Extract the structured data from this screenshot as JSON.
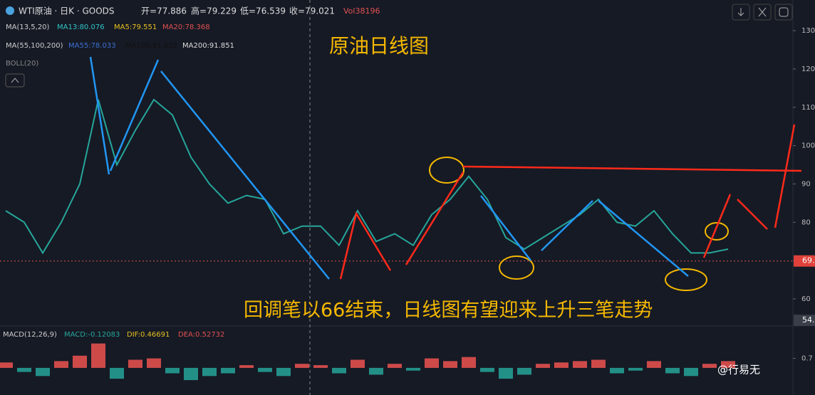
{
  "toolbar": {
    "symbol": "WTI原油 · 日K · GOODS",
    "open": "开=77.886",
    "high": "高=79.229",
    "low": "低=76.539",
    "close": "收=79.021",
    "volume": "Vol38196"
  },
  "indicators": {
    "ma_a_name": "MA(13,5,20)",
    "ma13": "MA13:80.076",
    "ma5": "MA5:79.551",
    "ma20": "MA20:78.368",
    "ma_b_name": "MA(55,100,200)",
    "ma55": "MA55:78.033",
    "ma100": "MA100:81.652",
    "ma200": "MA200:91.851",
    "boll": "BOLL(20)"
  },
  "annotations": {
    "title": "原油日线图",
    "comment": "回调笔以66结束，日线图有望迎来上升三笔走势",
    "watermark": "@行易无"
  },
  "chart_data": [
    {
      "type": "line",
      "color": "#26a69a",
      "values": [
        83,
        80,
        72,
        80,
        90,
        112,
        95,
        104,
        112,
        108,
        97,
        90,
        85,
        87,
        86,
        77,
        79,
        79,
        74,
        83,
        75,
        77,
        74,
        82,
        86,
        92,
        86,
        76,
        73,
        76,
        79,
        82,
        86,
        80,
        79,
        83,
        77,
        72,
        72,
        73
      ],
      "ylim": [
        53.5,
        138
      ],
      "yticks": [
        60,
        70,
        80,
        90,
        100,
        110,
        120,
        130
      ],
      "price_tags": [
        {
          "value": 69.9,
          "label": "69."
        },
        {
          "value": 54.4,
          "label": "54."
        }
      ]
    },
    {
      "type": "bar",
      "title": "MACD(12,26,9)",
      "macd": "MACD:-0.12083",
      "dif": "DIF:0.46691",
      "dea": "DEA:0.52732",
      "values": [
        0.4,
        -0.3,
        -0.6,
        0.5,
        0.9,
        1.8,
        -0.8,
        0.6,
        0.7,
        -0.4,
        -0.9,
        -0.6,
        -0.4,
        0.2,
        -0.3,
        -0.6,
        0.3,
        0.2,
        -0.4,
        0.6,
        -0.5,
        0.3,
        -0.2,
        0.7,
        0.5,
        0.8,
        -0.3,
        -0.8,
        -0.5,
        0.3,
        0.4,
        0.5,
        0.6,
        -0.4,
        -0.2,
        0.5,
        -0.4,
        -0.6,
        0.3,
        0.5
      ],
      "ylim": [
        -2,
        2.2
      ],
      "yticks": [
        0.7
      ]
    }
  ]
}
